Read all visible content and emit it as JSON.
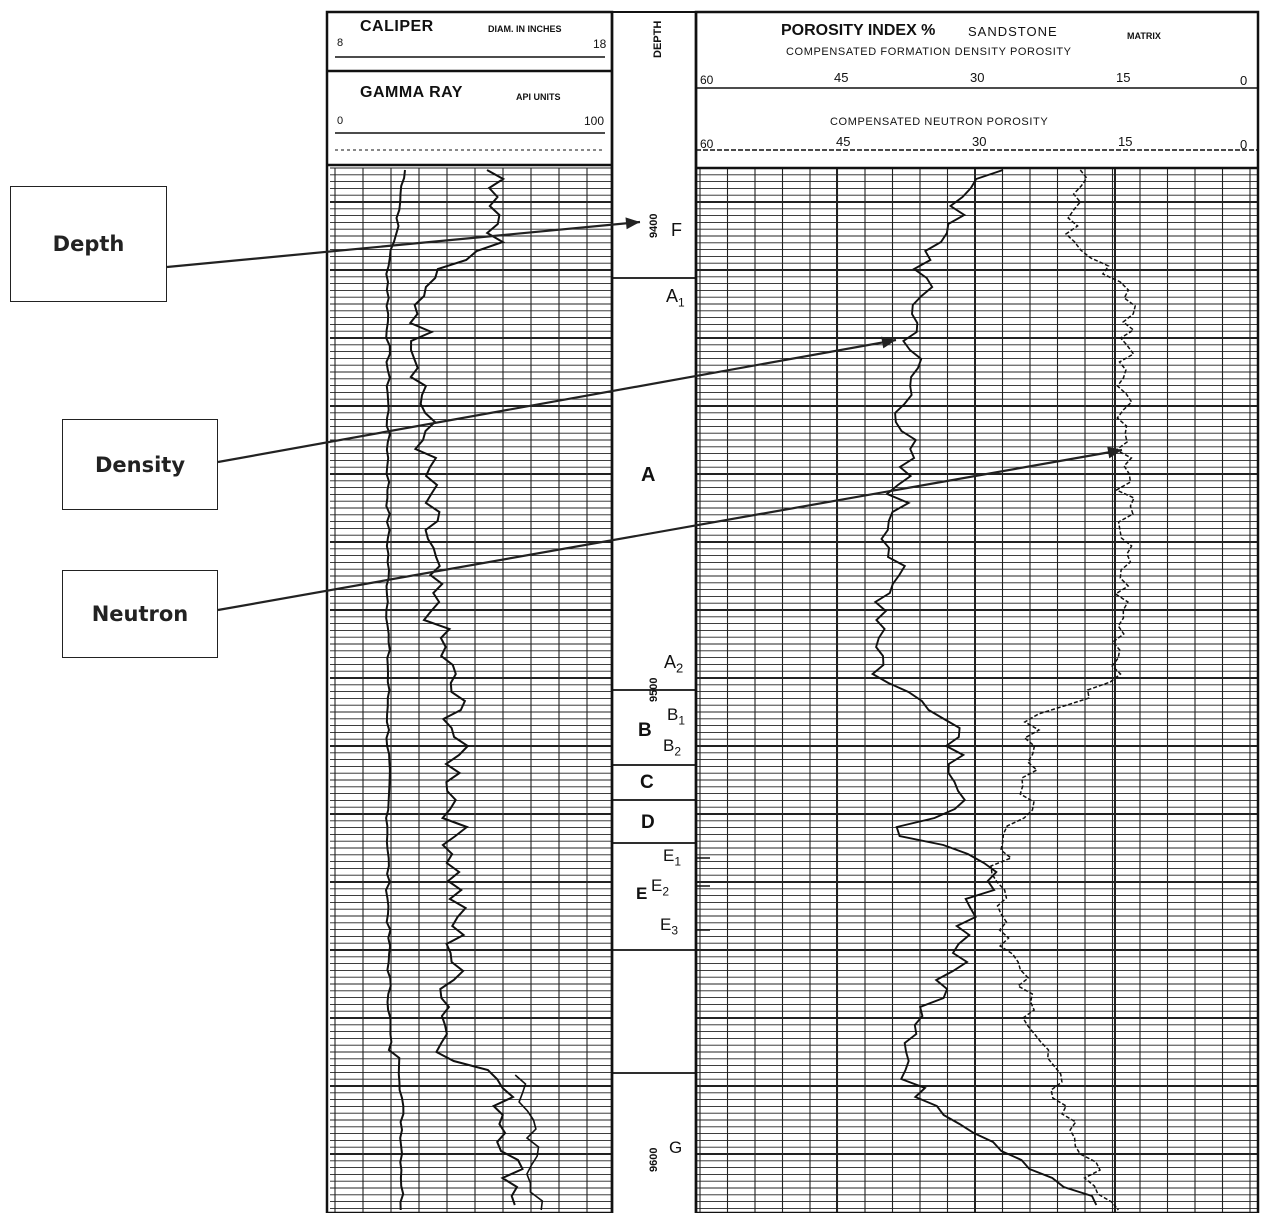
{
  "callouts": {
    "depth": "Depth",
    "density": "Density",
    "neutron": "Neutron"
  },
  "track1": {
    "caliper_title": "CALIPER",
    "caliper_units": "DIAM. IN INCHES",
    "caliper_min": "8",
    "caliper_max": "18",
    "gamma_title": "GAMMA RAY",
    "gamma_units": "API UNITS",
    "gamma_min": "0",
    "gamma_max": "100"
  },
  "depth_track": {
    "header": "DEPTH",
    "marks": [
      "9400",
      "9500",
      "9600"
    ]
  },
  "track2": {
    "title": "POROSITY INDEX %",
    "matrix_value": "SANDSTONE",
    "matrix_label": "MATRIX",
    "density_title": "COMPENSATED FORMATION DENSITY POROSITY",
    "neutron_title": "COMPENSATED NEUTRON POROSITY",
    "scale": [
      "60",
      "45",
      "30",
      "15",
      "0"
    ]
  },
  "zones": {
    "F": "F",
    "A1": "A",
    "A1_sub": "1",
    "A": "A",
    "A2": "A",
    "A2_sub": "2",
    "B": "B",
    "B1": "B",
    "B1_sub": "1",
    "B2": "B",
    "B2_sub": "2",
    "C": "C",
    "D": "D",
    "E": "E",
    "E1": "E",
    "E1_sub": "1",
    "E2": "E",
    "E2_sub": "2",
    "E3": "E",
    "E3_sub": "3",
    "G": "G"
  },
  "colors": {
    "ink": "#111111",
    "grid": "#222222",
    "paper": "#ffffff"
  }
}
